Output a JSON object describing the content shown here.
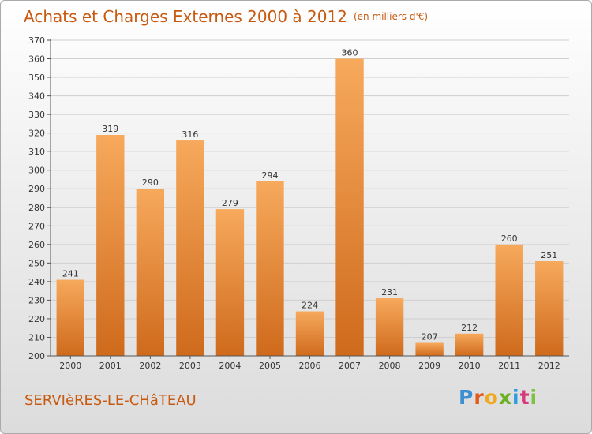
{
  "header": {
    "title": "Achats et Charges Externes 2000 à 2012",
    "subtitle": "(en milliers d'€)"
  },
  "footer": {
    "place": "SERVIèRES-LE-CHâTEAU",
    "logo_text": "Proxiti",
    "logo_colors": [
      "#3d8fd1",
      "#e05a1c",
      "#f2a81d",
      "#6ab023",
      "#2d9be0",
      "#d63a7a",
      "#7cc242"
    ]
  },
  "colors": {
    "bar_light": "#f7a95c",
    "bar_dark": "#cf6a1c",
    "title": "#c75a10",
    "grid": "#cfcfcf",
    "axis": "#555555"
  },
  "chart_data": {
    "type": "bar",
    "title": "Achats et Charges Externes 2000 à 2012",
    "subtitle": "(en milliers d'€)",
    "categories": [
      "2000",
      "2001",
      "2002",
      "2003",
      "2004",
      "2005",
      "2006",
      "2007",
      "2008",
      "2009",
      "2010",
      "2011",
      "2012"
    ],
    "values": [
      241,
      319,
      290,
      316,
      279,
      294,
      224,
      360,
      231,
      207,
      212,
      260,
      251
    ],
    "ylim": [
      200,
      370
    ],
    "ytick_step": 10,
    "grid": true,
    "legend": "none"
  }
}
